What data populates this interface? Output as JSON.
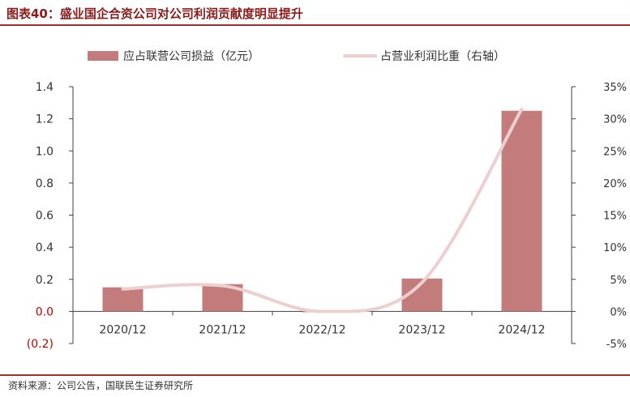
{
  "title": "图表40：盛业国企合资公司对公司利润贡献度明显提升",
  "source": "资料来源：公司公告，国联民生证券研究所",
  "colors": {
    "bar": "#c47b7b",
    "line": "#edcfcf",
    "rule": "#a33030",
    "title": "#8b1a1a",
    "negative_tick": "#c00000",
    "axis": "#404040"
  },
  "chart_data": {
    "type": "bar",
    "categories": [
      "2020/12",
      "2021/12",
      "2022/12",
      "2023/12",
      "2024/12"
    ],
    "series": [
      {
        "name": "应占联营公司损益（亿元）",
        "type": "bar",
        "axis": "left",
        "values": [
          0.15,
          0.17,
          0.0,
          0.205,
          1.25
        ]
      },
      {
        "name": "占营业利润比重（右轴）",
        "type": "line",
        "axis": "right",
        "smooth": true,
        "values": [
          3.5,
          4.0,
          0.0,
          4.5,
          31.5
        ]
      }
    ],
    "y_left": {
      "ylim": [
        -0.2,
        1.4
      ],
      "ticks": [
        "(0.2)",
        "0.0",
        "0.2",
        "0.4",
        "0.6",
        "0.8",
        "1.0",
        "1.2",
        "1.4"
      ]
    },
    "y_right": {
      "ylim": [
        -5,
        35
      ],
      "ticks": [
        "-5%",
        "0%",
        "5%",
        "10%",
        "15%",
        "20%",
        "25%",
        "30%",
        "35%"
      ]
    },
    "legend_position": "top",
    "grid": false
  }
}
